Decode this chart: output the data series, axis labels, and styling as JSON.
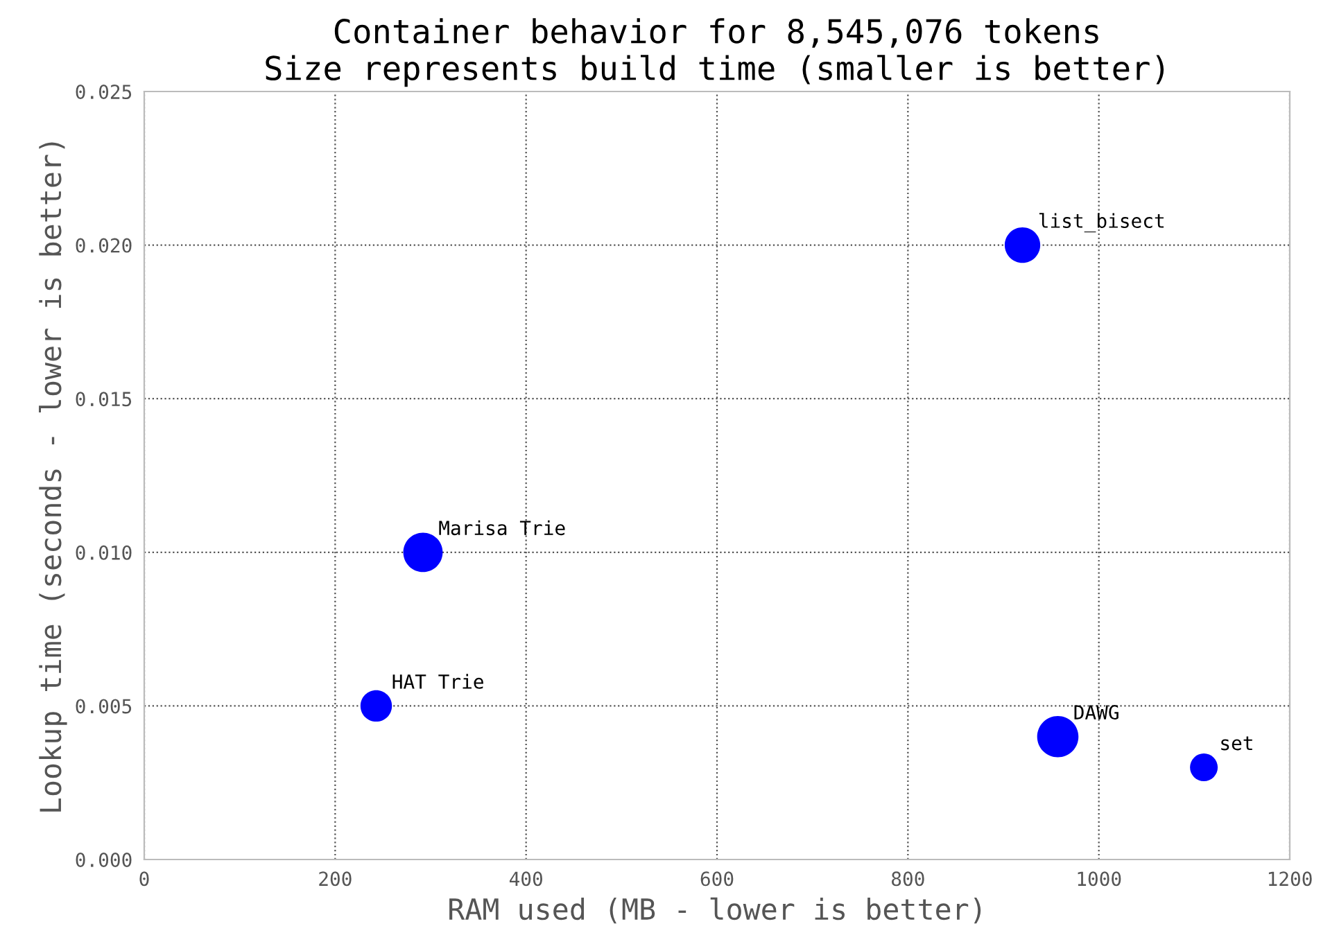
{
  "chart_data": {
    "type": "bubble",
    "title": "Container behavior for 8,545,076 tokens",
    "subtitle": "Size represents build time (smaller is better)",
    "xlabel": "RAM used (MB - lower is better)",
    "ylabel": "Lookup time (seconds - lower is better)",
    "x": [
      920,
      292,
      243,
      957,
      1110
    ],
    "values": [
      0.02,
      0.01,
      0.005,
      0.004,
      0.003
    ],
    "sizes": [
      0.74,
      0.91,
      0.58,
      1,
      0.45
    ],
    "color": "#0000ff",
    "annotations": [
      {
        "text": "list_bisect",
        "x": 920,
        "y": 0.02
      },
      {
        "text": "Marisa Trie",
        "x": 292,
        "y": 0.01
      },
      {
        "text": "HAT Trie",
        "x": 243,
        "y": 0.005
      },
      {
        "text": "DAWG",
        "x": 957,
        "y": 0.004
      },
      {
        "text": "set",
        "x": 1110,
        "y": 0.003
      }
    ],
    "xlim": [
      0,
      1200
    ],
    "ylim": [
      0,
      0.025
    ],
    "xticks": [
      0,
      200,
      400,
      600,
      800,
      1000,
      1200
    ],
    "yticks": [
      {
        "value": 0,
        "label": "0.000"
      },
      {
        "value": 0.005,
        "label": "0.005"
      },
      {
        "value": 0.01,
        "label": "0.010"
      },
      {
        "value": 0.015,
        "label": "0.015"
      },
      {
        "value": 0.02,
        "label": "0.020"
      },
      {
        "value": 0.025,
        "label": "0.025"
      }
    ],
    "grid": true
  }
}
